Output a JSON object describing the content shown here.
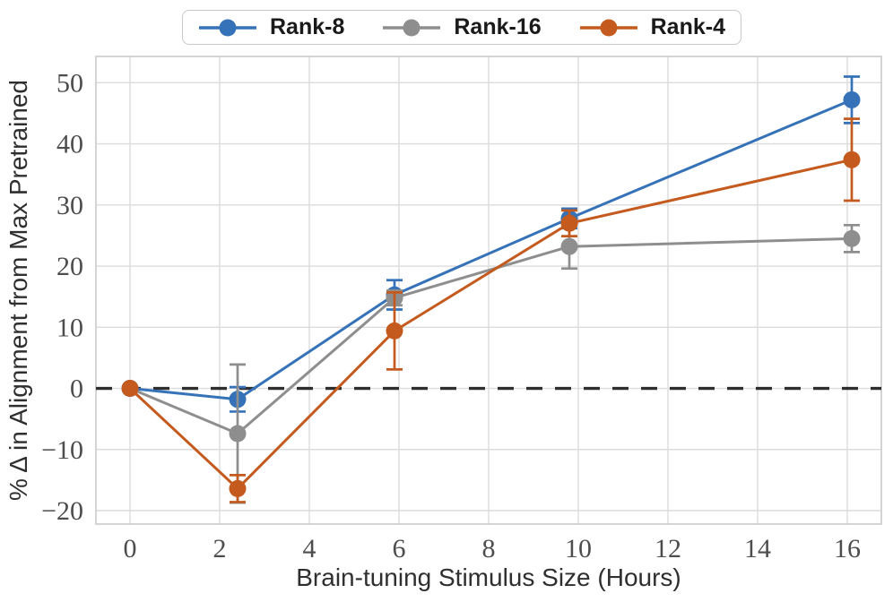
{
  "chart_data": {
    "type": "line",
    "title": "",
    "x": [
      0,
      2.4,
      5.9,
      9.8,
      16.1
    ],
    "series": [
      {
        "name": "Rank-8",
        "color": "#3572b8",
        "values": [
          0,
          -1.8,
          15.3,
          27.8,
          47.2
        ],
        "errors": [
          0,
          2.0,
          2.4,
          1.6,
          3.8
        ]
      },
      {
        "name": "Rank-16",
        "color": "#8e8e8e",
        "values": [
          0,
          -7.4,
          14.8,
          23.2,
          24.5
        ],
        "errors": [
          0,
          11.3,
          1.2,
          3.6,
          2.2
        ]
      },
      {
        "name": "Rank-4",
        "color": "#c45a1d",
        "values": [
          0,
          -16.4,
          9.4,
          27.0,
          37.4
        ],
        "errors": [
          0,
          2.2,
          6.3,
          2.1,
          6.7
        ]
      }
    ],
    "xlabel": "Brain-tuning Stimulus Size (Hours)",
    "ylabel": "% Δ in Alignment from Max Pretrained",
    "xticks": [
      0,
      2,
      4,
      6,
      8,
      10,
      12,
      14,
      16
    ],
    "yticks": [
      -20,
      -10,
      0,
      10,
      20,
      30,
      40,
      50
    ],
    "xlim": [
      -0.76,
      16.76
    ],
    "ylim": [
      -22.2,
      54.3
    ],
    "grid": true,
    "legend_position": "upper center",
    "zero_line": {
      "y": 0,
      "style": "dashed",
      "color": "#2e2e2e"
    }
  },
  "style": {
    "background": "#ffffff",
    "grid_color": "#dcdcdc",
    "border_color": "#c9c9c9",
    "tick_label_color": "#4d4d4d",
    "axis_label_color": "#2f2f2f",
    "legend_text_color": "#1a1a1a",
    "legend_border_color": "#c8c8c8"
  }
}
